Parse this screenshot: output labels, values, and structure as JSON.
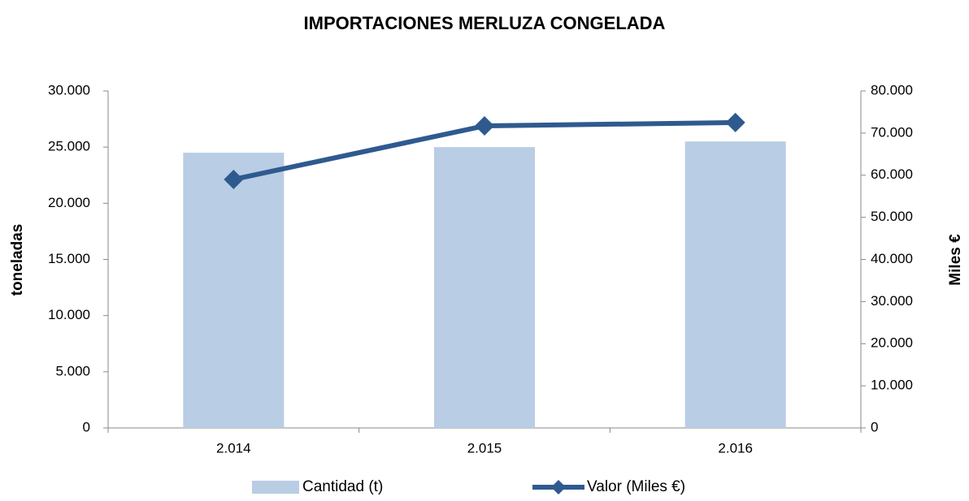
{
  "chart_data": {
    "type": "bar",
    "title": "IMPORTACIONES MERLUZA CONGELADA",
    "ylabel": "toneladas",
    "y2label": "Miles €",
    "categories": [
      "2.014",
      "2.015",
      "2.016"
    ],
    "series": [
      {
        "name": "Cantidad (t)",
        "color": "#b9cde5",
        "type": "bar",
        "values": [
          24500,
          25000,
          25500
        ]
      },
      {
        "name": "Valor (Miles €)",
        "color": "#2f5a8f",
        "type": "line",
        "axis": "y2",
        "values": [
          59000,
          71700,
          72500
        ]
      }
    ],
    "ylim": [
      0,
      30000
    ],
    "yticks": [
      0,
      {
        "value": 5000,
        "label": "5.000"
      },
      {
        "value": 10000,
        "label": "10.000"
      },
      {
        "value": 15000,
        "label": "15.000"
      },
      {
        "value": 20000,
        "label": "20.000"
      },
      {
        "value": 25000,
        "label": "25.000"
      },
      {
        "value": 30000,
        "label": "30.000"
      }
    ],
    "y2lim": [
      0,
      80000
    ],
    "y2ticks": [
      0,
      {
        "value": 10000,
        "label": "10.000"
      },
      {
        "value": 20000,
        "label": "20.000"
      },
      {
        "value": 30000,
        "label": "30.000"
      },
      {
        "value": 40000,
        "label": "40.000"
      },
      {
        "value": 50000,
        "label": "50.000"
      },
      {
        "value": 60000,
        "label": "60.000"
      },
      {
        "value": 70000,
        "label": "70.000"
      },
      {
        "value": 80000,
        "label": "80.000"
      }
    ],
    "grid": false,
    "legend": "bottom"
  }
}
